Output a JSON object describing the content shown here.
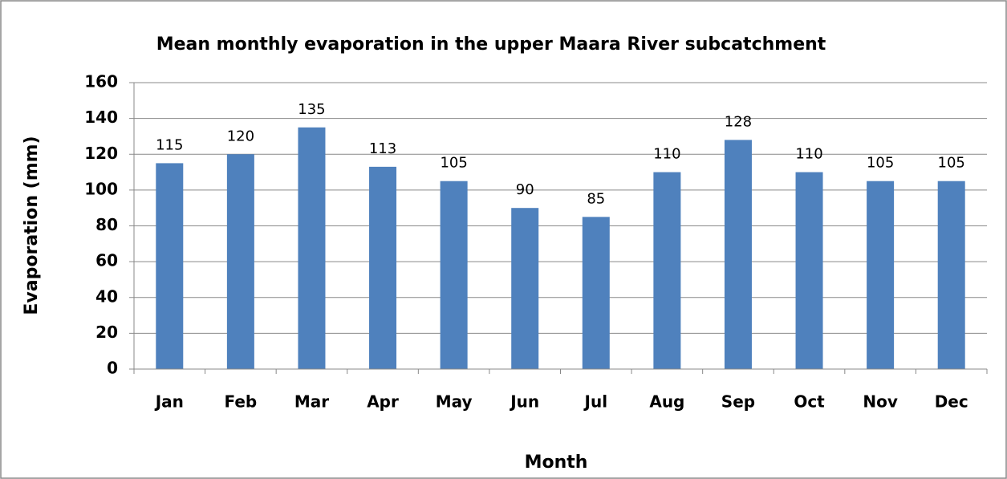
{
  "chart_data": {
    "type": "bar",
    "title": "Mean monthly evaporation in the upper Maara River subcatchment",
    "x_label": "Month",
    "y_label": "Evaporation (mm)",
    "categories": [
      "Jan",
      "Feb",
      "Mar",
      "Apr",
      "May",
      "Jun",
      "Jul",
      "Aug",
      "Sep",
      "Oct",
      "Nov",
      "Dec"
    ],
    "values": [
      115,
      120,
      135,
      113,
      105,
      90,
      85,
      110,
      128,
      110,
      105,
      105
    ],
    "color": "#4f81bd",
    "ylim": [
      0,
      160
    ],
    "yticks": [
      0,
      20,
      40,
      60,
      80,
      100,
      120,
      140,
      160
    ],
    "grid": true
  }
}
